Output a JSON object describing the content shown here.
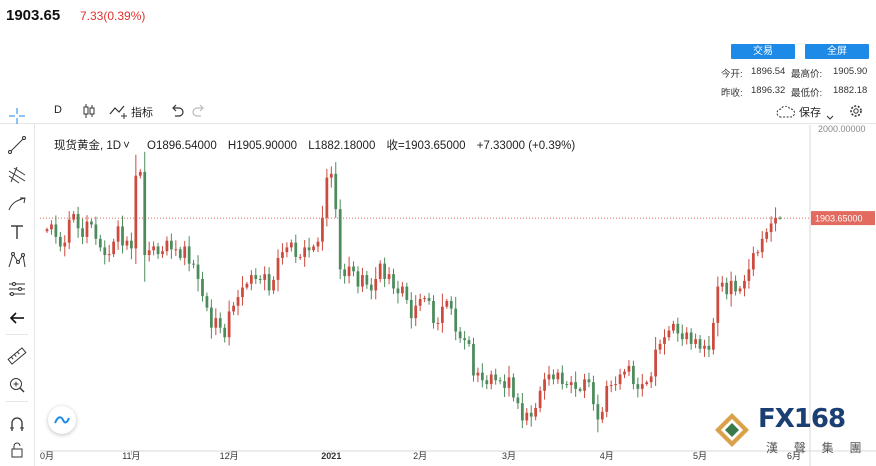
{
  "header": {
    "price": "1903.65",
    "change": "7.33(0.39%)",
    "trade_label": "交易",
    "fullscreen_label": "全屏",
    "open_label": "今开:",
    "open_value": "1896.54",
    "high_label": "最高价:",
    "high_value": "1905.90",
    "prev_close_label": "昨收:",
    "prev_close_value": "1896.32",
    "low_label": "最低价:",
    "low_value": "1882.18"
  },
  "toolbar": {
    "interval": "D",
    "indicators_label": "指标",
    "save_label": "保存"
  },
  "legend": {
    "symbol": "现货黄金, 1D",
    "open": "O1896.54000",
    "high": "H1905.90000",
    "low": "L1882.18000",
    "close": "收=1903.65000",
    "change": "+7.33000 (+0.39%)"
  },
  "brand": {
    "logo_text": "FX168",
    "name_text": "漢 聲 集 團"
  },
  "colors": {
    "up": "#cc4a3e",
    "down": "#4c8b5c",
    "last_price_line": "#e26a5e",
    "accent": "#1e8ae8"
  },
  "chart_data": {
    "type": "candlestick",
    "symbol": "现货黄金",
    "interval": "1D",
    "x_tick_labels": [
      "0月",
      "11月",
      "12月",
      "2021",
      "2月",
      "3月",
      "4月",
      "5月",
      "6月"
    ],
    "y_tick_labels": [
      "2000.00000"
    ],
    "last_price_label": "1903.65000",
    "last_price": 1903.65,
    "ylim": [
      1660,
      2000
    ],
    "grid": false,
    "closes": [
      1892,
      1897,
      1884,
      1874,
      1878,
      1902,
      1908,
      1893,
      1884,
      1900,
      1897,
      1882,
      1873,
      1865,
      1866,
      1879,
      1895,
      1875,
      1880,
      1872,
      1948,
      1952,
      1865,
      1870,
      1874,
      1866,
      1869,
      1880,
      1871,
      1871,
      1862,
      1874,
      1856,
      1855,
      1840,
      1822,
      1810,
      1789,
      1799,
      1789,
      1779,
      1806,
      1812,
      1821,
      1831,
      1835,
      1844,
      1840,
      1839,
      1845,
      1828,
      1839,
      1862,
      1868,
      1873,
      1878,
      1863,
      1863,
      1873,
      1870,
      1874,
      1879,
      1904,
      1946,
      1950,
      1913,
      1850,
      1843,
      1853,
      1848,
      1832,
      1844,
      1834,
      1828,
      1840,
      1856,
      1840,
      1845,
      1830,
      1825,
      1832,
      1818,
      1799,
      1812,
      1819,
      1820,
      1817,
      1794,
      1794,
      1811,
      1817,
      1809,
      1785,
      1778,
      1776,
      1772,
      1739,
      1742,
      1734,
      1730,
      1740,
      1734,
      1733,
      1726,
      1737,
      1716,
      1710,
      1692,
      1700,
      1696,
      1705,
      1723,
      1735,
      1740,
      1735,
      1742,
      1730,
      1729,
      1732,
      1725,
      1723,
      1735,
      1732,
      1709,
      1693,
      1701,
      1728,
      1729,
      1730,
      1740,
      1743,
      1749,
      1730,
      1725,
      1730,
      1732,
      1738,
      1766,
      1772,
      1779,
      1786,
      1793,
      1783,
      1777,
      1784,
      1772,
      1777,
      1767,
      1770,
      1766,
      1794,
      1832,
      1836,
      1824,
      1838,
      1827,
      1830,
      1838,
      1850,
      1867,
      1868,
      1882,
      1889,
      1898,
      1904,
      1903.65
    ]
  }
}
